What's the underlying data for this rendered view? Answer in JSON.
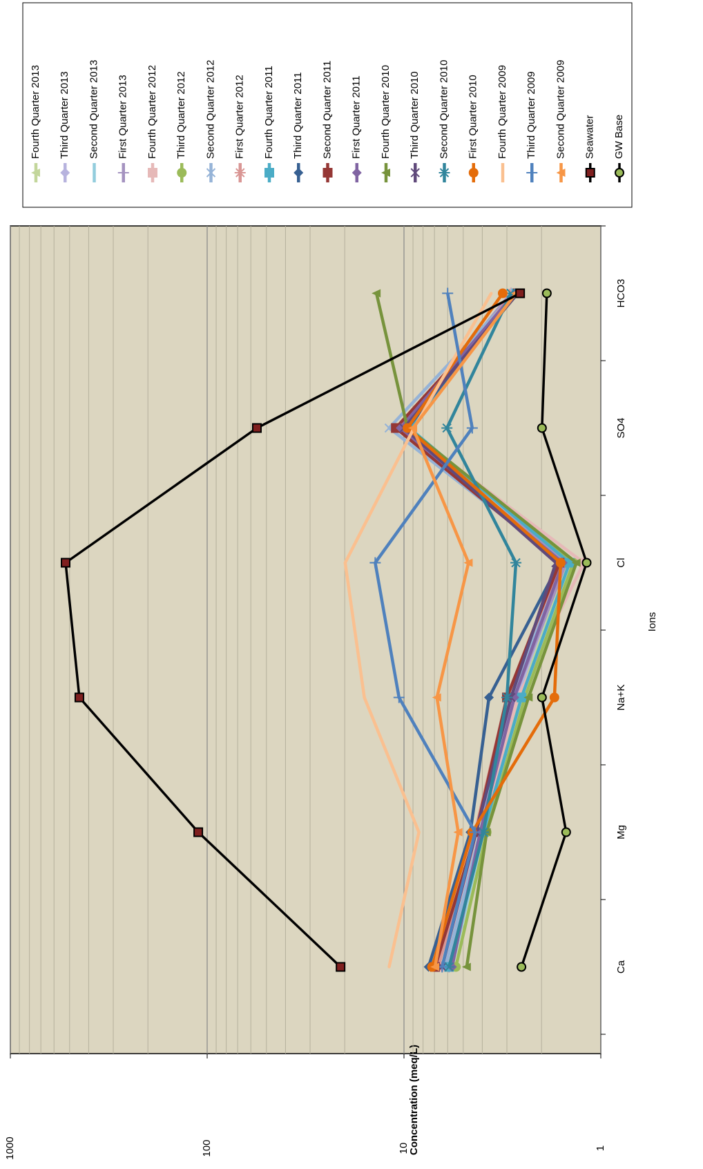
{
  "chart_data": {
    "type": "line",
    "y_label": "Concentration (meq/L)",
    "x_label": "Ions",
    "categories": [
      "Ca",
      "Mg",
      "Na+K",
      "Cl",
      "SO4",
      "HCO3"
    ],
    "log_scale": true,
    "ylim": [
      1,
      1000
    ],
    "yticks": [
      1,
      10,
      100,
      1000
    ],
    "minor_yticks": [
      2,
      3,
      4,
      5,
      6,
      7,
      8,
      9,
      20,
      30,
      40,
      50,
      60,
      70,
      80,
      90,
      200,
      300,
      400,
      500,
      600,
      700,
      800,
      900
    ],
    "grid": true,
    "legend": "right",
    "series": [
      {
        "name": "Fourth Quarter 2013",
        "color": "#c3d69b",
        "marker": "triangle",
        "values": [
          5.7,
          3.95,
          2.64,
          1.44,
          10.2,
          2.74
        ]
      },
      {
        "name": "Third Quarter 2013",
        "color": "#b7b3de",
        "marker": "diamond",
        "values": [
          5.9,
          4.0,
          2.68,
          1.52,
          10.6,
          2.8
        ]
      },
      {
        "name": "Second Quarter 2013",
        "color": "#93cddd",
        "marker": "none",
        "values": [
          5.7,
          3.95,
          2.75,
          1.5,
          10,
          2.74
        ]
      },
      {
        "name": "First Quarter 2013",
        "color": "#a593c0",
        "marker": "plus",
        "values": [
          5.9,
          3.95,
          2.75,
          1.5,
          10.4,
          2.86
        ]
      },
      {
        "name": "Fourth Quarter 2012",
        "color": "#e6b9b8",
        "marker": "square",
        "values": [
          6.4,
          4.1,
          2.64,
          1.22,
          10,
          2.74
        ]
      },
      {
        "name": "Third Quarter 2012",
        "color": "#9bbb59",
        "marker": "circle",
        "values": [
          5.45,
          3.8,
          2.43,
          1.38,
          9.8,
          2.64
        ]
      },
      {
        "name": "Second Quarter 2012",
        "color": "#95b3d7",
        "marker": "x",
        "values": [
          6.15,
          4.1,
          2.86,
          1.56,
          11.9,
          2.74
        ]
      },
      {
        "name": "First Quarter 2012",
        "color": "#d99694",
        "marker": "asterisk",
        "values": [
          6.7,
          4.35,
          3.0,
          1.6,
          9.6,
          2.8
        ]
      },
      {
        "name": "Fourth Quarter 2011",
        "color": "#4bacc6",
        "marker": "square",
        "values": [
          5.9,
          3.95,
          2.53,
          1.44,
          9.4,
          2.68
        ]
      },
      {
        "name": "Third Quarter 2011",
        "color": "#376092",
        "marker": "diamond",
        "values": [
          7.5,
          4.6,
          3.7,
          1.62,
          9.6,
          2.74
        ]
      },
      {
        "name": "Second Quarter 2011",
        "color": "#953735",
        "marker": "square",
        "values": [
          6.95,
          4.3,
          3.0,
          1.62,
          11,
          2.64
        ]
      },
      {
        "name": "First Quarter 2011",
        "color": "#8064a2",
        "marker": "diamond",
        "values": [
          5.7,
          4.1,
          2.75,
          1.56,
          10.4,
          2.74
        ]
      },
      {
        "name": "Fourth Quarter 2010",
        "color": "#77933c",
        "marker": "triangle",
        "values": [
          4.8,
          3.8,
          2.33,
          1.33,
          9.6,
          13.8
        ]
      },
      {
        "name": "Third Quarter 2010",
        "color": "#604a7b",
        "marker": "x",
        "values": [
          6.4,
          4.3,
          2.86,
          1.69,
          10,
          2.64
        ]
      },
      {
        "name": "Second Quarter 2010",
        "color": "#31859c",
        "marker": "asterisk",
        "values": [
          5.9,
          3.95,
          3.0,
          2.7,
          6.05,
          2.86
        ]
      },
      {
        "name": "First Quarter 2010",
        "color": "#e46c0a",
        "marker": "circle",
        "values": [
          7.2,
          4.5,
          1.72,
          1.6,
          9.6,
          3.15
        ]
      },
      {
        "name": "Fourth Quarter 2009",
        "color": "#fac090",
        "marker": "none",
        "values": [
          11.9,
          8.4,
          15.9,
          19.9,
          8.9,
          3.6
        ]
      },
      {
        "name": "Third Quarter 2009",
        "color": "#4f81bd",
        "marker": "plus",
        "values": [
          6.4,
          4.35,
          10.6,
          14,
          4.5,
          6.0
        ]
      },
      {
        "name": "Second Quarter 2009",
        "color": "#f79646",
        "marker": "triangle",
        "values": [
          6.95,
          5.3,
          6.8,
          4.7,
          9,
          2.7
        ]
      },
      {
        "name": "Seawater",
        "color": "#000000",
        "marker": "square",
        "values": [
          21,
          111,
          446,
          524,
          55.9,
          2.57
        ]
      },
      {
        "name": "GW Base",
        "color": "#000000",
        "marker": "circle",
        "values": [
          2.53,
          1.5,
          1.99,
          1.18,
          1.99,
          1.88
        ]
      }
    ]
  }
}
